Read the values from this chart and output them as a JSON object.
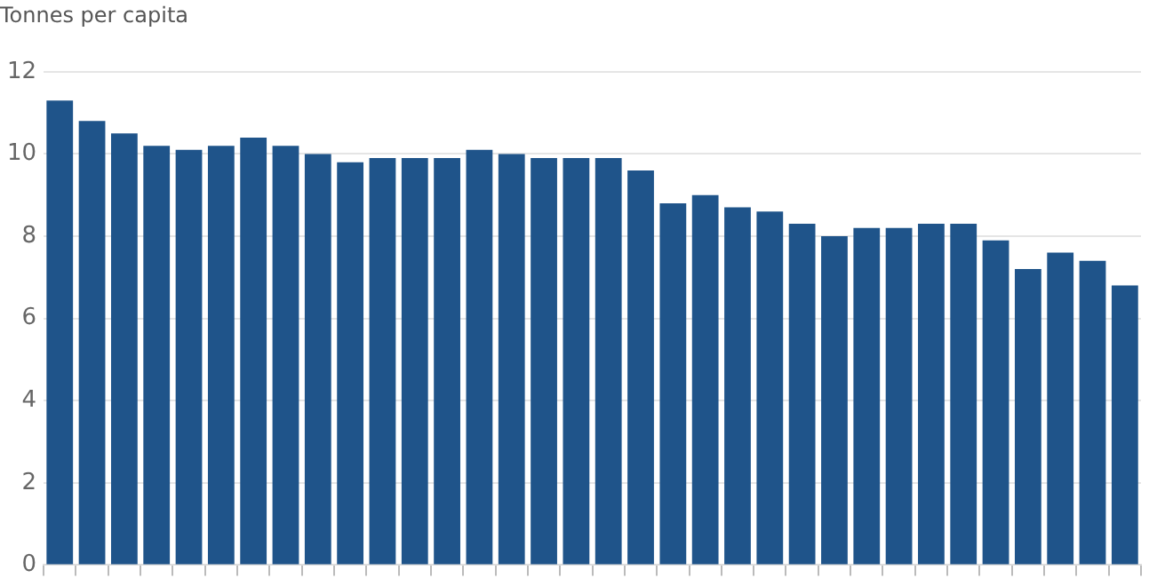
{
  "chart_data": {
    "type": "bar",
    "title": "Tonnes per capita",
    "categories": [
      null,
      null,
      null,
      null,
      null,
      null,
      null,
      null,
      null,
      null,
      null,
      null,
      null,
      null,
      null,
      null,
      null,
      null,
      null,
      null,
      null,
      null,
      null,
      null,
      null,
      null,
      null,
      null,
      null,
      null,
      null,
      null,
      null,
      null
    ],
    "values": [
      11.3,
      10.8,
      10.5,
      10.2,
      10.1,
      10.2,
      10.4,
      10.2,
      10.0,
      9.8,
      9.9,
      9.9,
      9.9,
      10.1,
      10.0,
      9.9,
      9.9,
      9.9,
      9.6,
      8.8,
      9.0,
      8.7,
      8.6,
      8.3,
      8.0,
      8.2,
      8.2,
      8.3,
      8.3,
      7.9,
      7.2,
      7.6,
      7.4,
      6.8
    ],
    "color": "#1f548a",
    "ylim": [
      0,
      12
    ],
    "yticks": [
      0,
      2,
      4,
      6,
      8,
      10,
      12
    ],
    "grid": "y",
    "tick_labels": "y"
  }
}
